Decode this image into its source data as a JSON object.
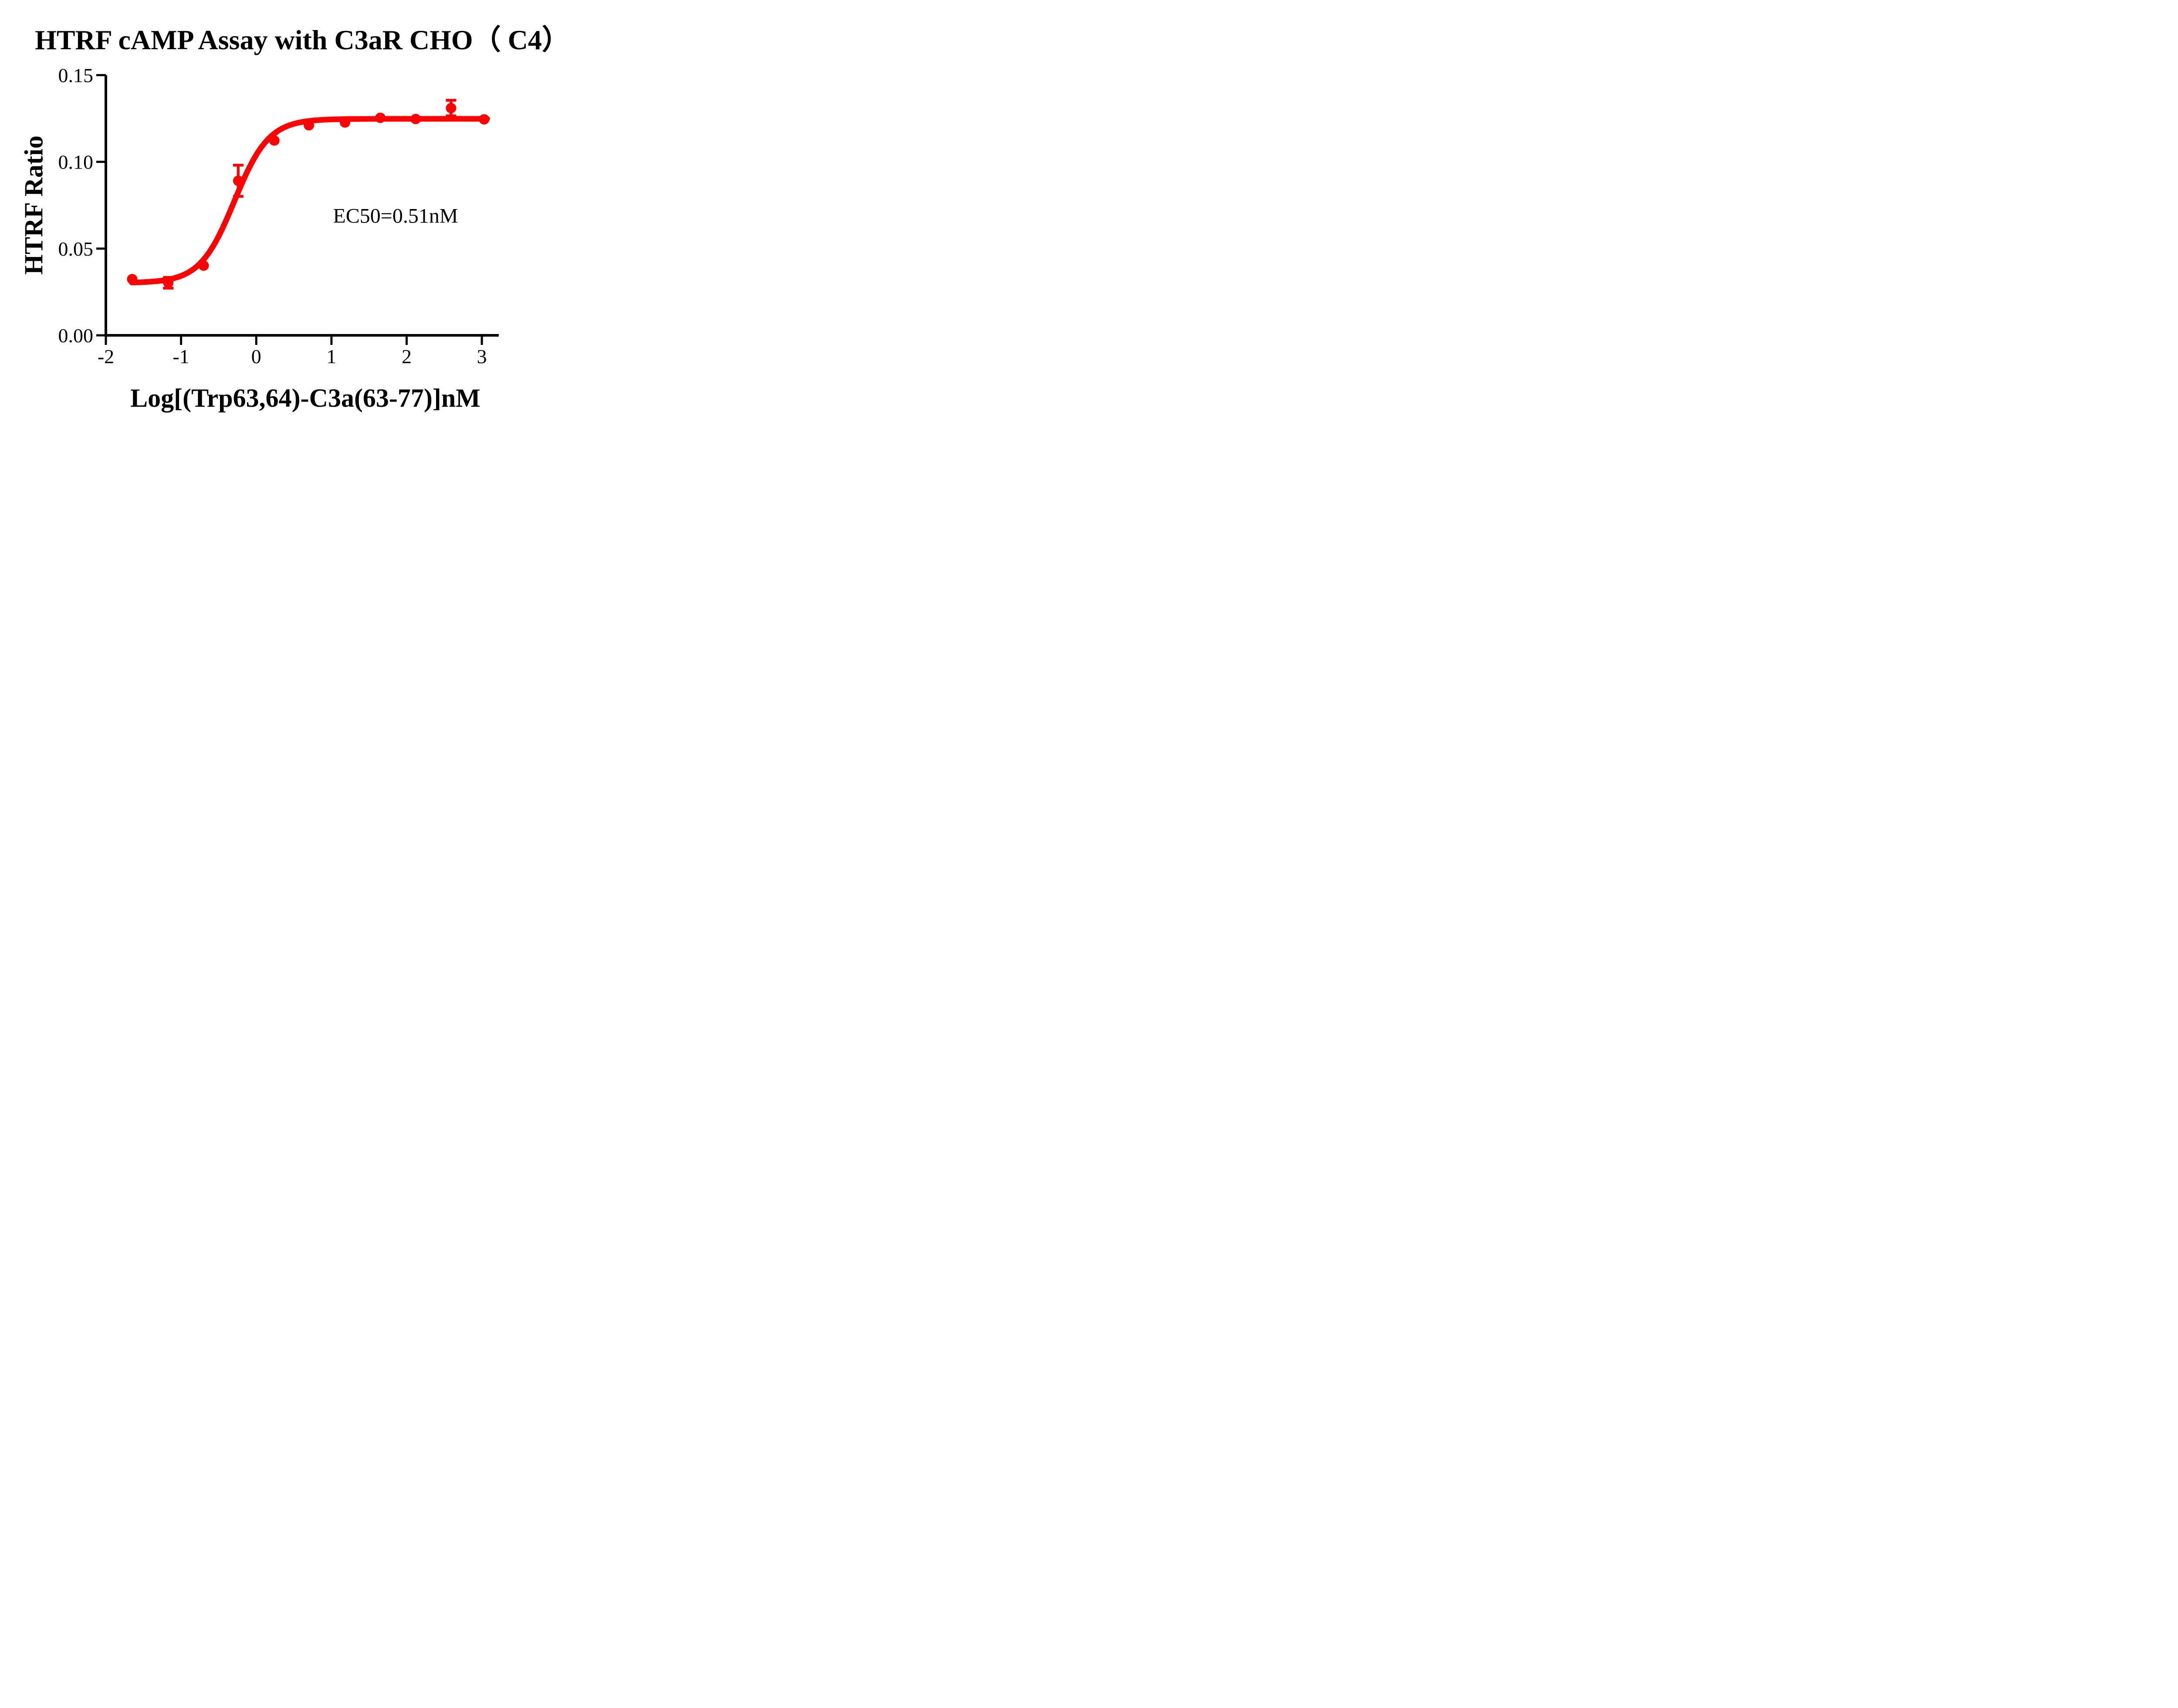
{
  "figure": {
    "title": "HTRF cAMP Assay with C3aR CHO（ C4）",
    "x_axis_label": "Log[(Trp63,64)-C3a(63-77)]nM",
    "y_axis_label": "HTRF Ratio",
    "annotation": "EC50=0.51nM"
  },
  "chart_data": {
    "type": "scatter",
    "title": "HTRF cAMP Assay with C3aR CHO（ C4）",
    "xlabel": "Log[(Trp63,64)-C3a(63-77)]nM",
    "ylabel": "HTRF Ratio",
    "annotation": "EC50=0.51nM",
    "ec50_nM": 0.51,
    "grid": false,
    "legend_position": "none",
    "xlim": [
      -2,
      3.225
    ],
    "ylim": [
      0,
      0.15
    ],
    "x_ticks": [
      -2,
      -1,
      0,
      1,
      2,
      3
    ],
    "x_tick_labels": [
      "-2",
      "-1",
      "0",
      "1",
      "2",
      "3"
    ],
    "y_ticks": [
      0.0,
      0.05,
      0.1,
      0.15
    ],
    "y_tick_labels": [
      "0.00",
      "0.05",
      "0.10",
      "0.15"
    ],
    "series_color": "#FA0505",
    "axis_color": "#000000",
    "points": [
      {
        "x": -1.65,
        "y": 0.0324,
        "err": null
      },
      {
        "x": -1.17,
        "y": 0.0303,
        "err": 0.0031
      },
      {
        "x": -0.7,
        "y": 0.0402,
        "err": null
      },
      {
        "x": -0.24,
        "y": 0.0891,
        "err": 0.009
      },
      {
        "x": 0.24,
        "y": 0.1123,
        "err": null
      },
      {
        "x": 0.7,
        "y": 0.1211,
        "err": null
      },
      {
        "x": 1.18,
        "y": 0.1227,
        "err": null
      },
      {
        "x": 1.65,
        "y": 0.1254,
        "err": null
      },
      {
        "x": 2.12,
        "y": 0.1247,
        "err": null
      },
      {
        "x": 2.59,
        "y": 0.131,
        "err": 0.0045
      },
      {
        "x": 3.03,
        "y": 0.1245,
        "err": null
      }
    ],
    "fit_curve": {
      "model": "4PL",
      "bottom": 0.0302,
      "top": 0.1248,
      "logEC50": -0.29,
      "hill": 1.9,
      "x_start": -1.655,
      "x_end": 3.08
    }
  }
}
